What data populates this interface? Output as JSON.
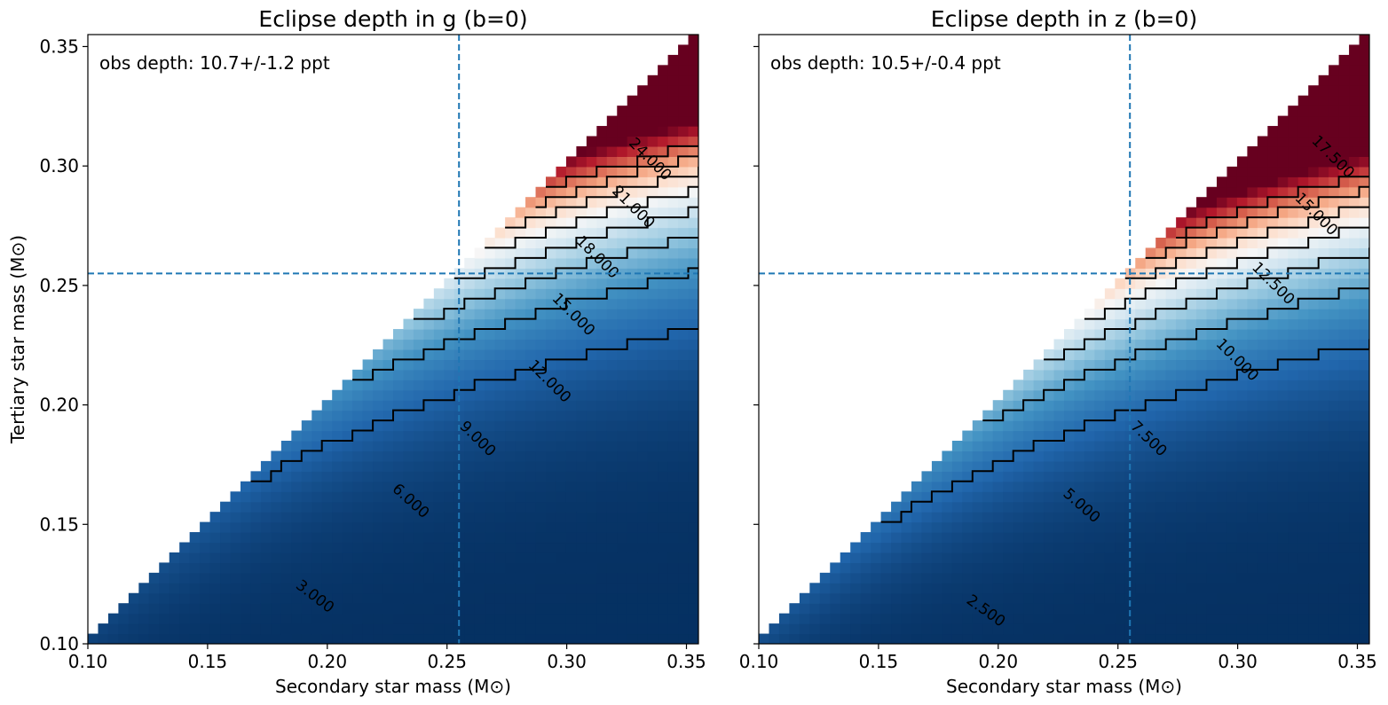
{
  "chart_data": [
    {
      "type": "heatmap",
      "title": "Eclipse depth in g (b=0)",
      "xlabel": "Secondary star mass (M⊙)",
      "ylabel": "Tertiary star mass (M⊙)",
      "xlim": [
        0.1,
        0.355
      ],
      "ylim": [
        0.1,
        0.355
      ],
      "xticks": [
        "0.10",
        "0.15",
        "0.20",
        "0.25",
        "0.30",
        "0.35"
      ],
      "yticks": [
        "0.10",
        "0.15",
        "0.20",
        "0.25",
        "0.30",
        "0.35"
      ],
      "annotation": "obs depth: 10.7+/-1.2 ppt",
      "crosshair": {
        "x": 0.255,
        "y": 0.255
      },
      "colormap": "RdBu_r",
      "color_range": [
        0,
        30
      ],
      "model": {
        "a": 0.18,
        "b": 0.84
      },
      "contour_levels": [
        3,
        6,
        9,
        12,
        15,
        18,
        21,
        24
      ],
      "contour_labels": [
        {
          "text": "3.000",
          "x": 0.195,
          "y": 0.12
        },
        {
          "text": "6.000",
          "x": 0.235,
          "y": 0.16
        },
        {
          "text": "9.000",
          "x": 0.263,
          "y": 0.186
        },
        {
          "text": "12.000",
          "x": 0.293,
          "y": 0.21
        },
        {
          "text": "15.000",
          "x": 0.303,
          "y": 0.238
        },
        {
          "text": "18.000",
          "x": 0.313,
          "y": 0.262
        },
        {
          "text": "21.000",
          "x": 0.328,
          "y": 0.283
        },
        {
          "text": "24.000",
          "x": 0.335,
          "y": 0.303
        }
      ]
    },
    {
      "type": "heatmap",
      "title": "Eclipse depth in z (b=0)",
      "xlabel": "Secondary star mass (M⊙)",
      "ylabel": "",
      "xlim": [
        0.1,
        0.355
      ],
      "ylim": [
        0.1,
        0.355
      ],
      "xticks": [
        "0.10",
        "0.15",
        "0.20",
        "0.25",
        "0.30",
        "0.35"
      ],
      "yticks": [
        "",
        "",
        "",
        "",
        "",
        ""
      ],
      "annotation": "obs depth: 10.5+/-0.4 ppt",
      "crosshair": {
        "x": 0.255,
        "y": 0.255
      },
      "colormap": "RdBu_r",
      "color_range": [
        0,
        21
      ],
      "model": {
        "a": 0.23,
        "b": 0.8
      },
      "contour_levels": [
        2.5,
        5,
        7.5,
        10,
        12.5,
        15,
        17.5
      ],
      "contour_labels": [
        {
          "text": "2.500",
          "x": 0.195,
          "y": 0.114
        },
        {
          "text": "5.000",
          "x": 0.235,
          "y": 0.158
        },
        {
          "text": "7.500",
          "x": 0.263,
          "y": 0.186
        },
        {
          "text": "10.000",
          "x": 0.3,
          "y": 0.219
        },
        {
          "text": "12.500",
          "x": 0.315,
          "y": 0.251
        },
        {
          "text": "15.000",
          "x": 0.333,
          "y": 0.28
        },
        {
          "text": "17.500",
          "x": 0.34,
          "y": 0.304
        }
      ]
    }
  ]
}
